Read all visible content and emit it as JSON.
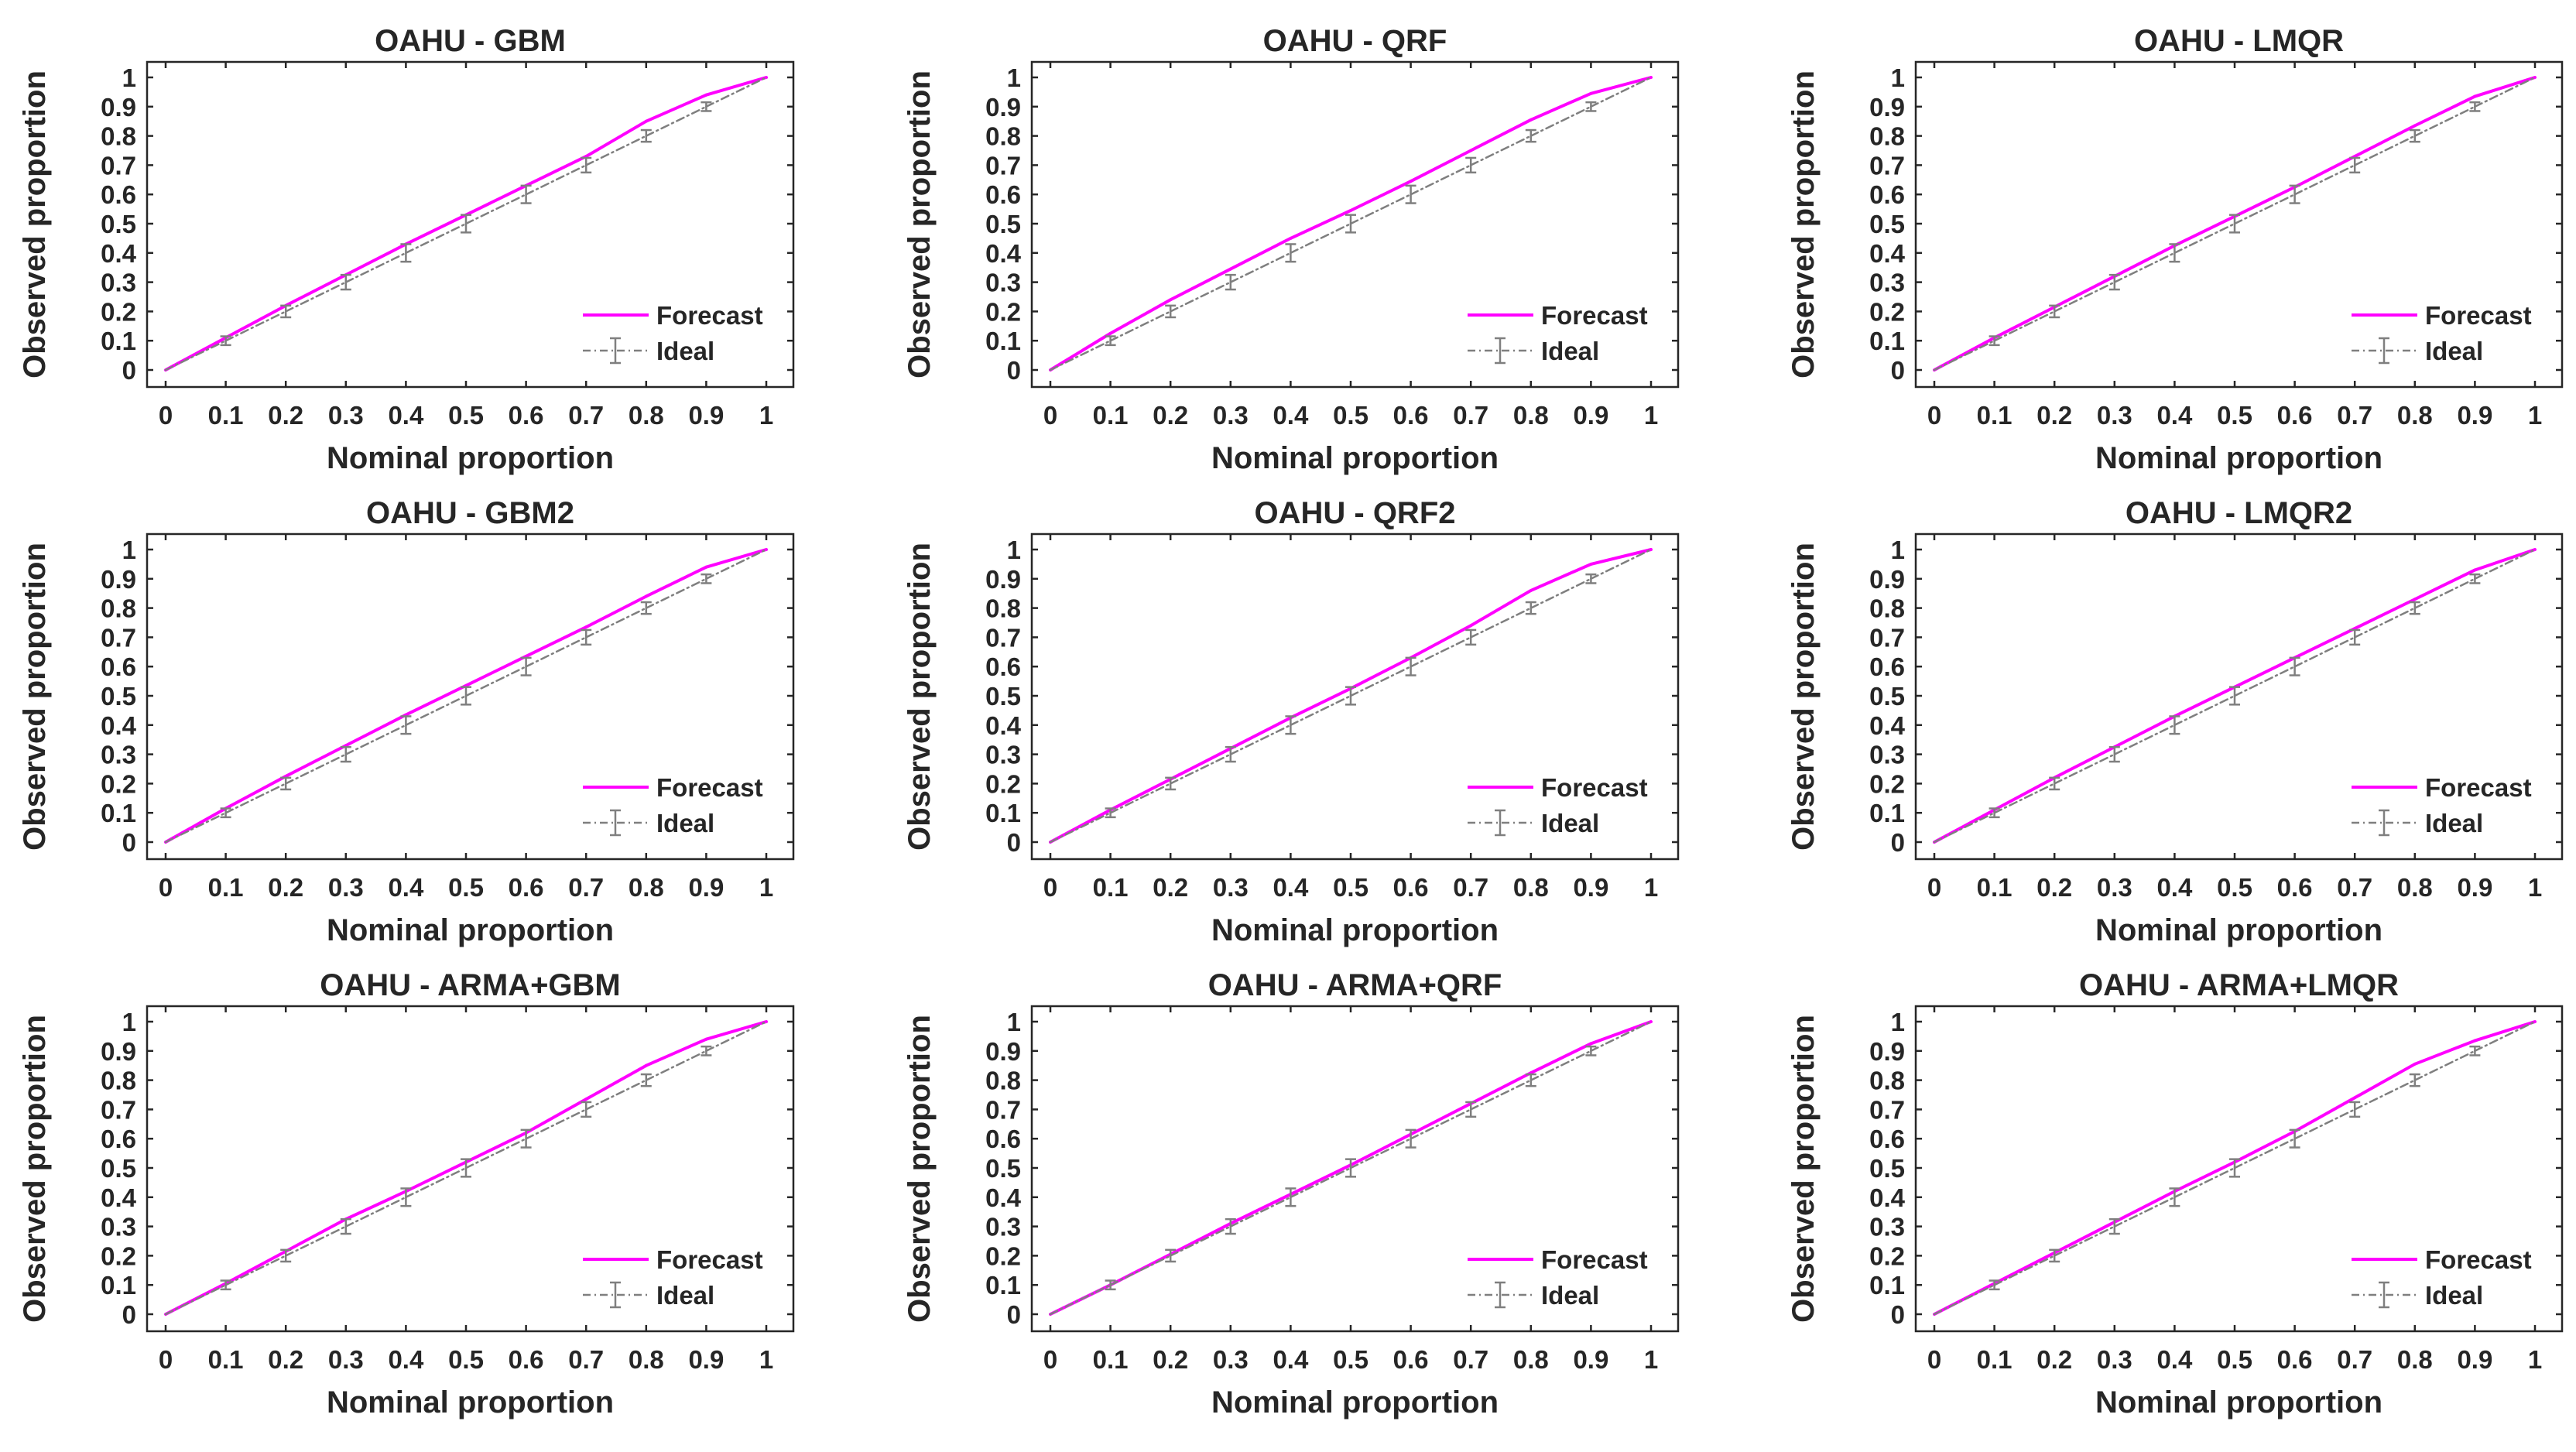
{
  "figure": {
    "rows": 3,
    "cols": 3,
    "colors": {
      "forecast": "#ff00ff",
      "ideal": "#7f7f7f",
      "axes": "#262626",
      "background": "#ffffff"
    }
  },
  "chart_data": [
    {
      "type": "line",
      "title": "OAHU - GBM",
      "xlabel": "Nominal proportion",
      "ylabel": "Observed proportion",
      "xlim": [
        0,
        1
      ],
      "ylim": [
        0,
        1
      ],
      "xticks": [
        0,
        0.1,
        0.2,
        0.3,
        0.4,
        0.5,
        0.6,
        0.7,
        0.8,
        0.9,
        1
      ],
      "yticks": [
        0,
        0.1,
        0.2,
        0.3,
        0.4,
        0.5,
        0.6,
        0.7,
        0.8,
        0.9,
        1
      ],
      "xtick_labels": [
        "0",
        "0.1",
        "0.2",
        "0.3",
        "0.4",
        "0.5",
        "0.6",
        "0.7",
        "0.8",
        "0.9",
        "1"
      ],
      "ytick_labels": [
        "0",
        "0.1",
        "0.2",
        "0.3",
        "0.4",
        "0.5",
        "0.6",
        "0.7",
        "0.8",
        "0.9",
        "1"
      ],
      "legend": {
        "position": "bottom-right",
        "entries": [
          "Forecast",
          "Ideal"
        ]
      },
      "x": [
        0,
        0.1,
        0.2,
        0.3,
        0.4,
        0.5,
        0.6,
        0.7,
        0.8,
        0.9,
        1
      ],
      "series": [
        {
          "name": "Forecast",
          "style": "solid",
          "values": [
            0,
            0.11,
            0.22,
            0.325,
            0.43,
            0.53,
            0.63,
            0.73,
            0.85,
            0.94,
            1
          ]
        },
        {
          "name": "Ideal",
          "style": "dashdot",
          "values": [
            0,
            0.1,
            0.2,
            0.3,
            0.4,
            0.5,
            0.6,
            0.7,
            0.8,
            0.9,
            1
          ],
          "error": [
            0,
            0.015,
            0.02,
            0.025,
            0.03,
            0.03,
            0.03,
            0.025,
            0.02,
            0.015,
            0
          ]
        }
      ]
    },
    {
      "type": "line",
      "title": "OAHU - QRF",
      "xlabel": "Nominal proportion",
      "ylabel": "Observed proportion",
      "xlim": [
        0,
        1
      ],
      "ylim": [
        0,
        1
      ],
      "xticks": [
        0,
        0.1,
        0.2,
        0.3,
        0.4,
        0.5,
        0.6,
        0.7,
        0.8,
        0.9,
        1
      ],
      "yticks": [
        0,
        0.1,
        0.2,
        0.3,
        0.4,
        0.5,
        0.6,
        0.7,
        0.8,
        0.9,
        1
      ],
      "xtick_labels": [
        "0",
        "0.1",
        "0.2",
        "0.3",
        "0.4",
        "0.5",
        "0.6",
        "0.7",
        "0.8",
        "0.9",
        "1"
      ],
      "ytick_labels": [
        "0",
        "0.1",
        "0.2",
        "0.3",
        "0.4",
        "0.5",
        "0.6",
        "0.7",
        "0.8",
        "0.9",
        "1"
      ],
      "legend": {
        "position": "bottom-right",
        "entries": [
          "Forecast",
          "Ideal"
        ]
      },
      "x": [
        0,
        0.1,
        0.2,
        0.3,
        0.4,
        0.5,
        0.6,
        0.7,
        0.8,
        0.9,
        1
      ],
      "series": [
        {
          "name": "Forecast",
          "style": "solid",
          "values": [
            0,
            0.125,
            0.24,
            0.345,
            0.45,
            0.545,
            0.645,
            0.75,
            0.855,
            0.945,
            1
          ]
        },
        {
          "name": "Ideal",
          "style": "dashdot",
          "values": [
            0,
            0.1,
            0.2,
            0.3,
            0.4,
            0.5,
            0.6,
            0.7,
            0.8,
            0.9,
            1
          ],
          "error": [
            0,
            0.015,
            0.02,
            0.025,
            0.03,
            0.03,
            0.03,
            0.025,
            0.02,
            0.015,
            0
          ]
        }
      ]
    },
    {
      "type": "line",
      "title": "OAHU - LMQR",
      "xlabel": "Nominal proportion",
      "ylabel": "Observed proportion",
      "xlim": [
        0,
        1
      ],
      "ylim": [
        0,
        1
      ],
      "xticks": [
        0,
        0.1,
        0.2,
        0.3,
        0.4,
        0.5,
        0.6,
        0.7,
        0.8,
        0.9,
        1
      ],
      "yticks": [
        0,
        0.1,
        0.2,
        0.3,
        0.4,
        0.5,
        0.6,
        0.7,
        0.8,
        0.9,
        1
      ],
      "xtick_labels": [
        "0",
        "0.1",
        "0.2",
        "0.3",
        "0.4",
        "0.5",
        "0.6",
        "0.7",
        "0.8",
        "0.9",
        "1"
      ],
      "ytick_labels": [
        "0",
        "0.1",
        "0.2",
        "0.3",
        "0.4",
        "0.5",
        "0.6",
        "0.7",
        "0.8",
        "0.9",
        "1"
      ],
      "legend": {
        "position": "bottom-right",
        "entries": [
          "Forecast",
          "Ideal"
        ]
      },
      "x": [
        0,
        0.1,
        0.2,
        0.3,
        0.4,
        0.5,
        0.6,
        0.7,
        0.8,
        0.9,
        1
      ],
      "series": [
        {
          "name": "Forecast",
          "style": "solid",
          "values": [
            0,
            0.11,
            0.215,
            0.32,
            0.425,
            0.525,
            0.625,
            0.73,
            0.835,
            0.935,
            1
          ]
        },
        {
          "name": "Ideal",
          "style": "dashdot",
          "values": [
            0,
            0.1,
            0.2,
            0.3,
            0.4,
            0.5,
            0.6,
            0.7,
            0.8,
            0.9,
            1
          ],
          "error": [
            0,
            0.015,
            0.02,
            0.025,
            0.03,
            0.03,
            0.03,
            0.025,
            0.02,
            0.015,
            0
          ]
        }
      ]
    },
    {
      "type": "line",
      "title": "OAHU - GBM2",
      "xlabel": "Nominal proportion",
      "ylabel": "Observed proportion",
      "xlim": [
        0,
        1
      ],
      "ylim": [
        0,
        1
      ],
      "xticks": [
        0,
        0.1,
        0.2,
        0.3,
        0.4,
        0.5,
        0.6,
        0.7,
        0.8,
        0.9,
        1
      ],
      "yticks": [
        0,
        0.1,
        0.2,
        0.3,
        0.4,
        0.5,
        0.6,
        0.7,
        0.8,
        0.9,
        1
      ],
      "xtick_labels": [
        "0",
        "0.1",
        "0.2",
        "0.3",
        "0.4",
        "0.5",
        "0.6",
        "0.7",
        "0.8",
        "0.9",
        "1"
      ],
      "ytick_labels": [
        "0",
        "0.1",
        "0.2",
        "0.3",
        "0.4",
        "0.5",
        "0.6",
        "0.7",
        "0.8",
        "0.9",
        "1"
      ],
      "legend": {
        "position": "bottom-right",
        "entries": [
          "Forecast",
          "Ideal"
        ]
      },
      "x": [
        0,
        0.1,
        0.2,
        0.3,
        0.4,
        0.5,
        0.6,
        0.7,
        0.8,
        0.9,
        1
      ],
      "series": [
        {
          "name": "Forecast",
          "style": "solid",
          "values": [
            0,
            0.115,
            0.225,
            0.33,
            0.435,
            0.535,
            0.635,
            0.735,
            0.84,
            0.94,
            1
          ]
        },
        {
          "name": "Ideal",
          "style": "dashdot",
          "values": [
            0,
            0.1,
            0.2,
            0.3,
            0.4,
            0.5,
            0.6,
            0.7,
            0.8,
            0.9,
            1
          ],
          "error": [
            0,
            0.015,
            0.02,
            0.025,
            0.03,
            0.03,
            0.03,
            0.025,
            0.02,
            0.015,
            0
          ]
        }
      ]
    },
    {
      "type": "line",
      "title": "OAHU - QRF2",
      "xlabel": "Nominal proportion",
      "ylabel": "Observed proportion",
      "xlim": [
        0,
        1
      ],
      "ylim": [
        0,
        1
      ],
      "xticks": [
        0,
        0.1,
        0.2,
        0.3,
        0.4,
        0.5,
        0.6,
        0.7,
        0.8,
        0.9,
        1
      ],
      "yticks": [
        0,
        0.1,
        0.2,
        0.3,
        0.4,
        0.5,
        0.6,
        0.7,
        0.8,
        0.9,
        1
      ],
      "xtick_labels": [
        "0",
        "0.1",
        "0.2",
        "0.3",
        "0.4",
        "0.5",
        "0.6",
        "0.7",
        "0.8",
        "0.9",
        "1"
      ],
      "ytick_labels": [
        "0",
        "0.1",
        "0.2",
        "0.3",
        "0.4",
        "0.5",
        "0.6",
        "0.7",
        "0.8",
        "0.9",
        "1"
      ],
      "legend": {
        "position": "bottom-right",
        "entries": [
          "Forecast",
          "Ideal"
        ]
      },
      "x": [
        0,
        0.1,
        0.2,
        0.3,
        0.4,
        0.5,
        0.6,
        0.7,
        0.8,
        0.9,
        1
      ],
      "series": [
        {
          "name": "Forecast",
          "style": "solid",
          "values": [
            0,
            0.11,
            0.215,
            0.32,
            0.425,
            0.525,
            0.63,
            0.74,
            0.86,
            0.95,
            1
          ]
        },
        {
          "name": "Ideal",
          "style": "dashdot",
          "values": [
            0,
            0.1,
            0.2,
            0.3,
            0.4,
            0.5,
            0.6,
            0.7,
            0.8,
            0.9,
            1
          ],
          "error": [
            0,
            0.015,
            0.02,
            0.025,
            0.03,
            0.03,
            0.03,
            0.025,
            0.02,
            0.015,
            0
          ]
        }
      ]
    },
    {
      "type": "line",
      "title": "OAHU - LMQR2",
      "xlabel": "Nominal proportion",
      "ylabel": "Observed proportion",
      "xlim": [
        0,
        1
      ],
      "ylim": [
        0,
        1
      ],
      "xticks": [
        0,
        0.1,
        0.2,
        0.3,
        0.4,
        0.5,
        0.6,
        0.7,
        0.8,
        0.9,
        1
      ],
      "yticks": [
        0,
        0.1,
        0.2,
        0.3,
        0.4,
        0.5,
        0.6,
        0.7,
        0.8,
        0.9,
        1
      ],
      "xtick_labels": [
        "0",
        "0.1",
        "0.2",
        "0.3",
        "0.4",
        "0.5",
        "0.6",
        "0.7",
        "0.8",
        "0.9",
        "1"
      ],
      "ytick_labels": [
        "0",
        "0.1",
        "0.2",
        "0.3",
        "0.4",
        "0.5",
        "0.6",
        "0.7",
        "0.8",
        "0.9",
        "1"
      ],
      "legend": {
        "position": "bottom-right",
        "entries": [
          "Forecast",
          "Ideal"
        ]
      },
      "x": [
        0,
        0.1,
        0.2,
        0.3,
        0.4,
        0.5,
        0.6,
        0.7,
        0.8,
        0.9,
        1
      ],
      "series": [
        {
          "name": "Forecast",
          "style": "solid",
          "values": [
            0,
            0.11,
            0.22,
            0.325,
            0.43,
            0.53,
            0.63,
            0.73,
            0.83,
            0.93,
            1
          ]
        },
        {
          "name": "Ideal",
          "style": "dashdot",
          "values": [
            0,
            0.1,
            0.2,
            0.3,
            0.4,
            0.5,
            0.6,
            0.7,
            0.8,
            0.9,
            1
          ],
          "error": [
            0,
            0.015,
            0.02,
            0.025,
            0.03,
            0.03,
            0.03,
            0.025,
            0.02,
            0.015,
            0
          ]
        }
      ]
    },
    {
      "type": "line",
      "title": "OAHU - ARMA+GBM",
      "xlabel": "Nominal proportion",
      "ylabel": "Observed proportion",
      "xlim": [
        0,
        1
      ],
      "ylim": [
        0,
        1
      ],
      "xticks": [
        0,
        0.1,
        0.2,
        0.3,
        0.4,
        0.5,
        0.6,
        0.7,
        0.8,
        0.9,
        1
      ],
      "yticks": [
        0,
        0.1,
        0.2,
        0.3,
        0.4,
        0.5,
        0.6,
        0.7,
        0.8,
        0.9,
        1
      ],
      "xtick_labels": [
        "0",
        "0.1",
        "0.2",
        "0.3",
        "0.4",
        "0.5",
        "0.6",
        "0.7",
        "0.8",
        "0.9",
        "1"
      ],
      "ytick_labels": [
        "0",
        "0.1",
        "0.2",
        "0.3",
        "0.4",
        "0.5",
        "0.6",
        "0.7",
        "0.8",
        "0.9",
        "1"
      ],
      "legend": {
        "position": "bottom-right",
        "entries": [
          "Forecast",
          "Ideal"
        ]
      },
      "x": [
        0,
        0.1,
        0.2,
        0.3,
        0.4,
        0.5,
        0.6,
        0.7,
        0.8,
        0.9,
        1
      ],
      "series": [
        {
          "name": "Forecast",
          "style": "solid",
          "values": [
            0,
            0.105,
            0.215,
            0.325,
            0.42,
            0.52,
            0.62,
            0.735,
            0.85,
            0.94,
            1
          ]
        },
        {
          "name": "Ideal",
          "style": "dashdot",
          "values": [
            0,
            0.1,
            0.2,
            0.3,
            0.4,
            0.5,
            0.6,
            0.7,
            0.8,
            0.9,
            1
          ],
          "error": [
            0,
            0.015,
            0.02,
            0.025,
            0.03,
            0.03,
            0.03,
            0.025,
            0.02,
            0.015,
            0
          ]
        }
      ]
    },
    {
      "type": "line",
      "title": "OAHU - ARMA+QRF",
      "xlabel": "Nominal proportion",
      "ylabel": "Observed proportion",
      "xlim": [
        0,
        1
      ],
      "ylim": [
        0,
        1
      ],
      "xticks": [
        0,
        0.1,
        0.2,
        0.3,
        0.4,
        0.5,
        0.6,
        0.7,
        0.8,
        0.9,
        1
      ],
      "yticks": [
        0,
        0.1,
        0.2,
        0.3,
        0.4,
        0.5,
        0.6,
        0.7,
        0.8,
        0.9,
        1
      ],
      "xtick_labels": [
        "0",
        "0.1",
        "0.2",
        "0.3",
        "0.4",
        "0.5",
        "0.6",
        "0.7",
        "0.8",
        "0.9",
        "1"
      ],
      "ytick_labels": [
        "0",
        "0.1",
        "0.2",
        "0.3",
        "0.4",
        "0.5",
        "0.6",
        "0.7",
        "0.8",
        "0.9",
        "1"
      ],
      "legend": {
        "position": "bottom-right",
        "entries": [
          "Forecast",
          "Ideal"
        ]
      },
      "x": [
        0,
        0.1,
        0.2,
        0.3,
        0.4,
        0.5,
        0.6,
        0.7,
        0.8,
        0.9,
        1
      ],
      "series": [
        {
          "name": "Forecast",
          "style": "solid",
          "values": [
            0,
            0.1,
            0.205,
            0.31,
            0.41,
            0.51,
            0.615,
            0.72,
            0.825,
            0.925,
            1
          ]
        },
        {
          "name": "Ideal",
          "style": "dashdot",
          "values": [
            0,
            0.1,
            0.2,
            0.3,
            0.4,
            0.5,
            0.6,
            0.7,
            0.8,
            0.9,
            1
          ],
          "error": [
            0,
            0.015,
            0.02,
            0.025,
            0.03,
            0.03,
            0.03,
            0.025,
            0.02,
            0.015,
            0
          ]
        }
      ]
    },
    {
      "type": "line",
      "title": "OAHU - ARMA+LMQR",
      "xlabel": "Nominal proportion",
      "ylabel": "Observed proportion",
      "xlim": [
        0,
        1
      ],
      "ylim": [
        0,
        1
      ],
      "xticks": [
        0,
        0.1,
        0.2,
        0.3,
        0.4,
        0.5,
        0.6,
        0.7,
        0.8,
        0.9,
        1
      ],
      "yticks": [
        0,
        0.1,
        0.2,
        0.3,
        0.4,
        0.5,
        0.6,
        0.7,
        0.8,
        0.9,
        1
      ],
      "xtick_labels": [
        "0",
        "0.1",
        "0.2",
        "0.3",
        "0.4",
        "0.5",
        "0.6",
        "0.7",
        "0.8",
        "0.9",
        "1"
      ],
      "ytick_labels": [
        "0",
        "0.1",
        "0.2",
        "0.3",
        "0.4",
        "0.5",
        "0.6",
        "0.7",
        "0.8",
        "0.9",
        "1"
      ],
      "legend": {
        "position": "bottom-right",
        "entries": [
          "Forecast",
          "Ideal"
        ]
      },
      "x": [
        0,
        0.1,
        0.2,
        0.3,
        0.4,
        0.5,
        0.6,
        0.7,
        0.8,
        0.9,
        1
      ],
      "series": [
        {
          "name": "Forecast",
          "style": "solid",
          "values": [
            0,
            0.105,
            0.21,
            0.315,
            0.42,
            0.52,
            0.625,
            0.74,
            0.855,
            0.935,
            1
          ]
        },
        {
          "name": "Ideal",
          "style": "dashdot",
          "values": [
            0,
            0.1,
            0.2,
            0.3,
            0.4,
            0.5,
            0.6,
            0.7,
            0.8,
            0.9,
            1
          ],
          "error": [
            0,
            0.015,
            0.02,
            0.025,
            0.03,
            0.03,
            0.03,
            0.025,
            0.02,
            0.015,
            0
          ]
        }
      ]
    }
  ]
}
